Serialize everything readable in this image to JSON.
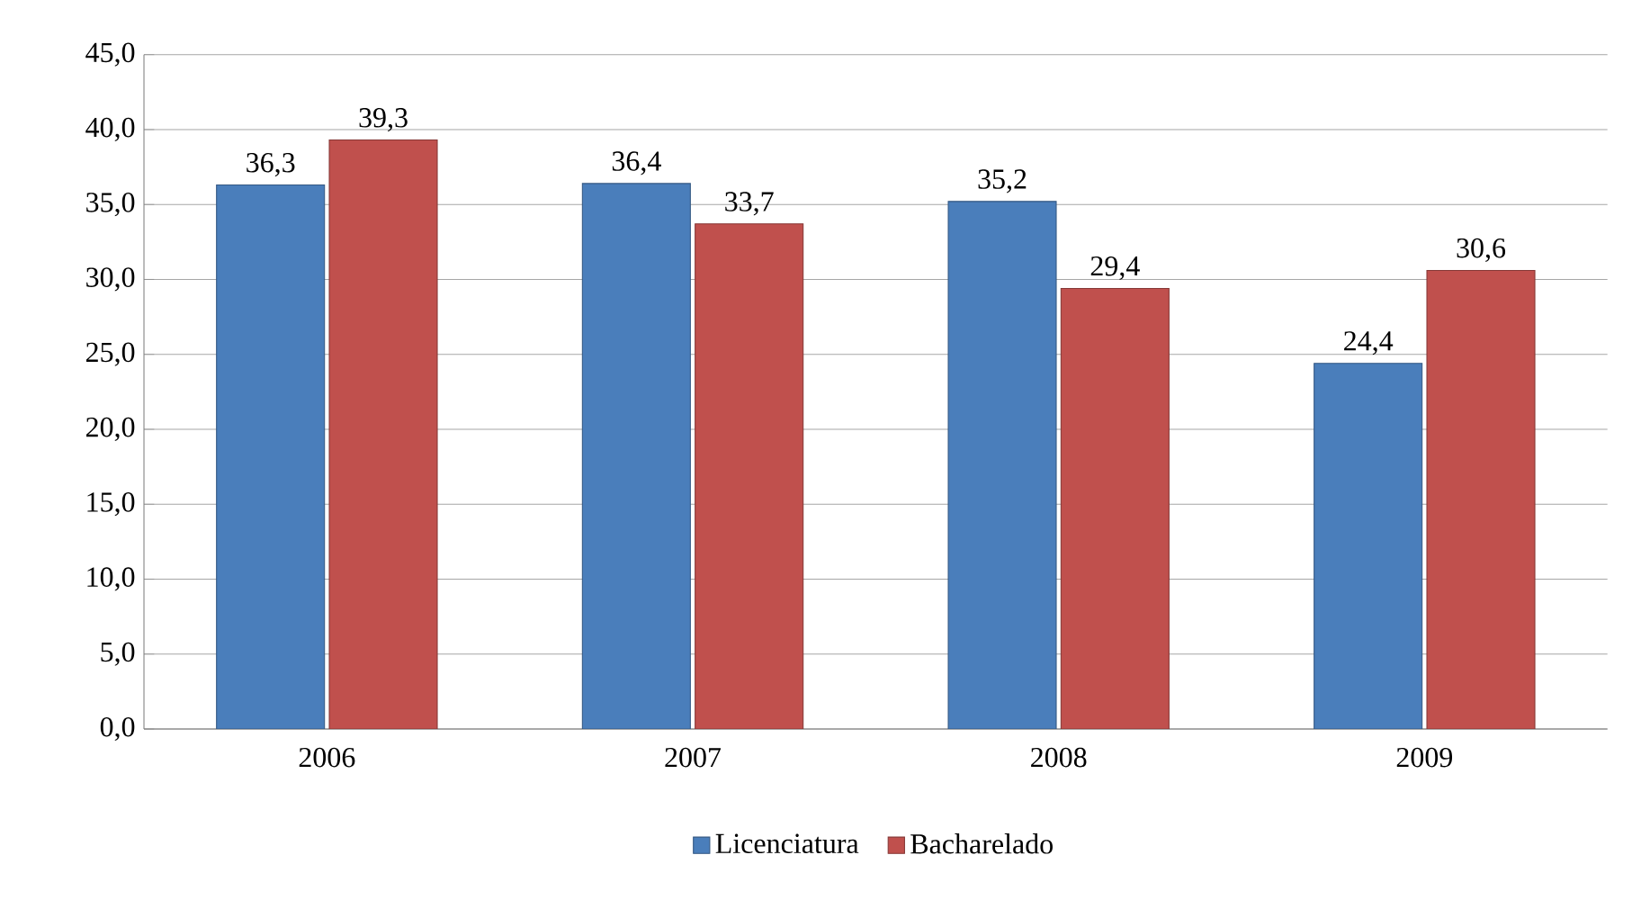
{
  "chart_data": {
    "type": "bar",
    "categories": [
      "2006",
      "2007",
      "2008",
      "2009"
    ],
    "series": [
      {
        "name": "Licenciatura",
        "color": "#4a7ebb",
        "values": [
          36.3,
          36.4,
          35.2,
          24.4
        ],
        "value_labels": [
          "36,3",
          "36,4",
          "35,2",
          "24,4"
        ]
      },
      {
        "name": "Bacharelado",
        "color": "#c0504d",
        "values": [
          39.3,
          33.7,
          29.4,
          30.6
        ],
        "value_labels": [
          "39,3",
          "33,7",
          "29,4",
          "30,6"
        ]
      }
    ],
    "ylim": [
      0,
      45
    ],
    "yticks": [
      {
        "value": 0,
        "label": "0,0"
      },
      {
        "value": 5,
        "label": "5,0"
      },
      {
        "value": 10,
        "label": "10,0"
      },
      {
        "value": 15,
        "label": "15,0"
      },
      {
        "value": 20,
        "label": "20,0"
      },
      {
        "value": 25,
        "label": "25,0"
      },
      {
        "value": 30,
        "label": "30,0"
      },
      {
        "value": 35,
        "label": "35,0"
      },
      {
        "value": 40,
        "label": "40,0"
      },
      {
        "value": 45,
        "label": "45,0"
      }
    ],
    "grid": "y",
    "legend": "bottom"
  }
}
